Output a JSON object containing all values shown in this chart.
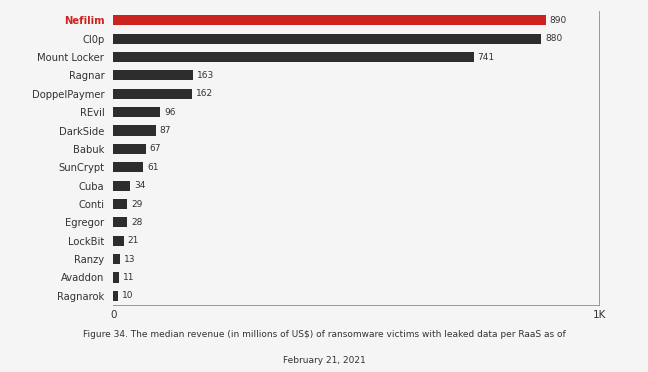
{
  "categories": [
    "Ragnarok",
    "Avaddon",
    "Ranzy",
    "LockBit",
    "Egregor",
    "Conti",
    "Cuba",
    "SunCrypt",
    "Babuk",
    "DarkSide",
    "REvil",
    "DoppelPaymer",
    "Ragnar",
    "Mount Locker",
    "Cl0p",
    "Nefilim"
  ],
  "values": [
    10,
    11,
    13,
    21,
    28,
    29,
    34,
    61,
    67,
    87,
    96,
    162,
    163,
    741,
    880,
    890
  ],
  "bar_colors": [
    "#2d2d2d",
    "#2d2d2d",
    "#2d2d2d",
    "#2d2d2d",
    "#2d2d2d",
    "#2d2d2d",
    "#2d2d2d",
    "#2d2d2d",
    "#2d2d2d",
    "#2d2d2d",
    "#2d2d2d",
    "#2d2d2d",
    "#2d2d2d",
    "#2d2d2d",
    "#2d2d2d",
    "#cc2222"
  ],
  "highlight_index": 15,
  "highlight_color": "#cc2222",
  "default_color": "#2d2d2d",
  "highlight_label_color": "#cc2222",
  "default_label_color": "#333333",
  "xlim": [
    0,
    1000
  ],
  "xtick_label": "1K",
  "background_color": "#f5f5f5",
  "caption_line1": "Figure 34. The median revenue (in millions of US$) of ransomware victims with leaked data per RaaS as of",
  "caption_line2": "February 21, 2021",
  "bar_height": 0.55
}
